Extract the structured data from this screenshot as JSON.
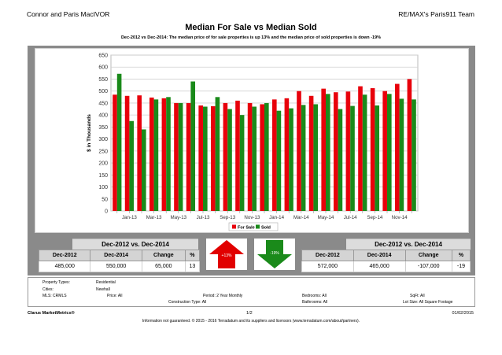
{
  "header": {
    "agent": "Connor and Paris MacIVOR",
    "brokerage": "RE/MAX's Paris911 Team"
  },
  "title": "Median For Sale vs Median Sold",
  "subtitle": "Dec-2012 vs Dec-2014: The median price of for sale properties is up 13% and the median price of sold properties is down -19%",
  "colors": {
    "for_sale": "#e8000b",
    "sold": "#1a8a1a",
    "up_arrow": "#e10000",
    "down_arrow": "#1a8a1a"
  },
  "chart_data": {
    "type": "bar",
    "ylabel": "$ in Thousands",
    "ylim": [
      0,
      650
    ],
    "yticks": [
      0,
      50,
      100,
      150,
      200,
      250,
      300,
      350,
      400,
      450,
      500,
      550,
      600,
      650
    ],
    "grid": true,
    "legend_position": "bottom-center",
    "tick_labels": [
      "Jan-13",
      "Mar-13",
      "May-13",
      "Jul-13",
      "Sep-13",
      "Nov-13",
      "Jan-14",
      "Mar-14",
      "May-14",
      "Jul-14",
      "Sep-14",
      "Nov-14"
    ],
    "categories": [
      "Dec-12",
      "Jan-13",
      "Feb-13",
      "Mar-13",
      "Apr-13",
      "May-13",
      "Jun-13",
      "Jul-13",
      "Aug-13",
      "Sep-13",
      "Oct-13",
      "Nov-13",
      "Dec-13",
      "Jan-14",
      "Feb-14",
      "Mar-14",
      "Apr-14",
      "May-14",
      "Jun-14",
      "Jul-14",
      "Aug-14",
      "Sep-14",
      "Oct-14",
      "Nov-14",
      "Dec-14"
    ],
    "series": [
      {
        "name": "For Sale",
        "values": [
          485,
          480,
          482,
          473,
          470,
          450,
          450,
          440,
          437,
          450,
          460,
          450,
          445,
          465,
          470,
          500,
          480,
          510,
          495,
          498,
          520,
          512,
          500,
          530,
          550
        ]
      },
      {
        "name": "Sold",
        "values": [
          572,
          375,
          340,
          465,
          475,
          450,
          540,
          435,
          475,
          425,
          400,
          435,
          450,
          418,
          428,
          442,
          445,
          488,
          425,
          438,
          485,
          440,
          488,
          468,
          465
        ]
      }
    ]
  },
  "summary_left": {
    "title": "Dec-2012 vs. Dec-2014",
    "headers": [
      "Dec-2012",
      "Dec-2014",
      "Change",
      "%"
    ],
    "values": [
      "485,000",
      "550,000",
      "65,000",
      "13"
    ]
  },
  "summary_right": {
    "title": "Dec-2012 vs. Dec-2014",
    "headers": [
      "Dec-2012",
      "Dec-2014",
      "Change",
      "%"
    ],
    "values": [
      "572,000",
      "465,000",
      "-107,000",
      "-19"
    ]
  },
  "arrows": {
    "up_label": "+13%",
    "down_label": "-19%"
  },
  "criteria": {
    "property_types_label": "Property Types:",
    "property_types_value": "Residential",
    "cities_label": "Cities:",
    "cities_value": "Newhall",
    "mls": "MLS:   CRMLS",
    "price": "Price: All",
    "period": "Period: 2 Year Monthly",
    "construction": "Construction Type: All",
    "bedrooms": "Bedrooms: All",
    "bathrooms": "Bathrooms: All",
    "sqft": "SqFt:   All",
    "lotsize": "Lot Size:  All Square Footage"
  },
  "footer": {
    "brand": "Clarus MarketMetrics®",
    "page": "1/2",
    "date": "01/02/2015",
    "disclaimer": "Information not guaranteed. © 2015 - 2016 Terradatum and its suppliers and licensors (www.terradatum.com/about/partners)."
  }
}
